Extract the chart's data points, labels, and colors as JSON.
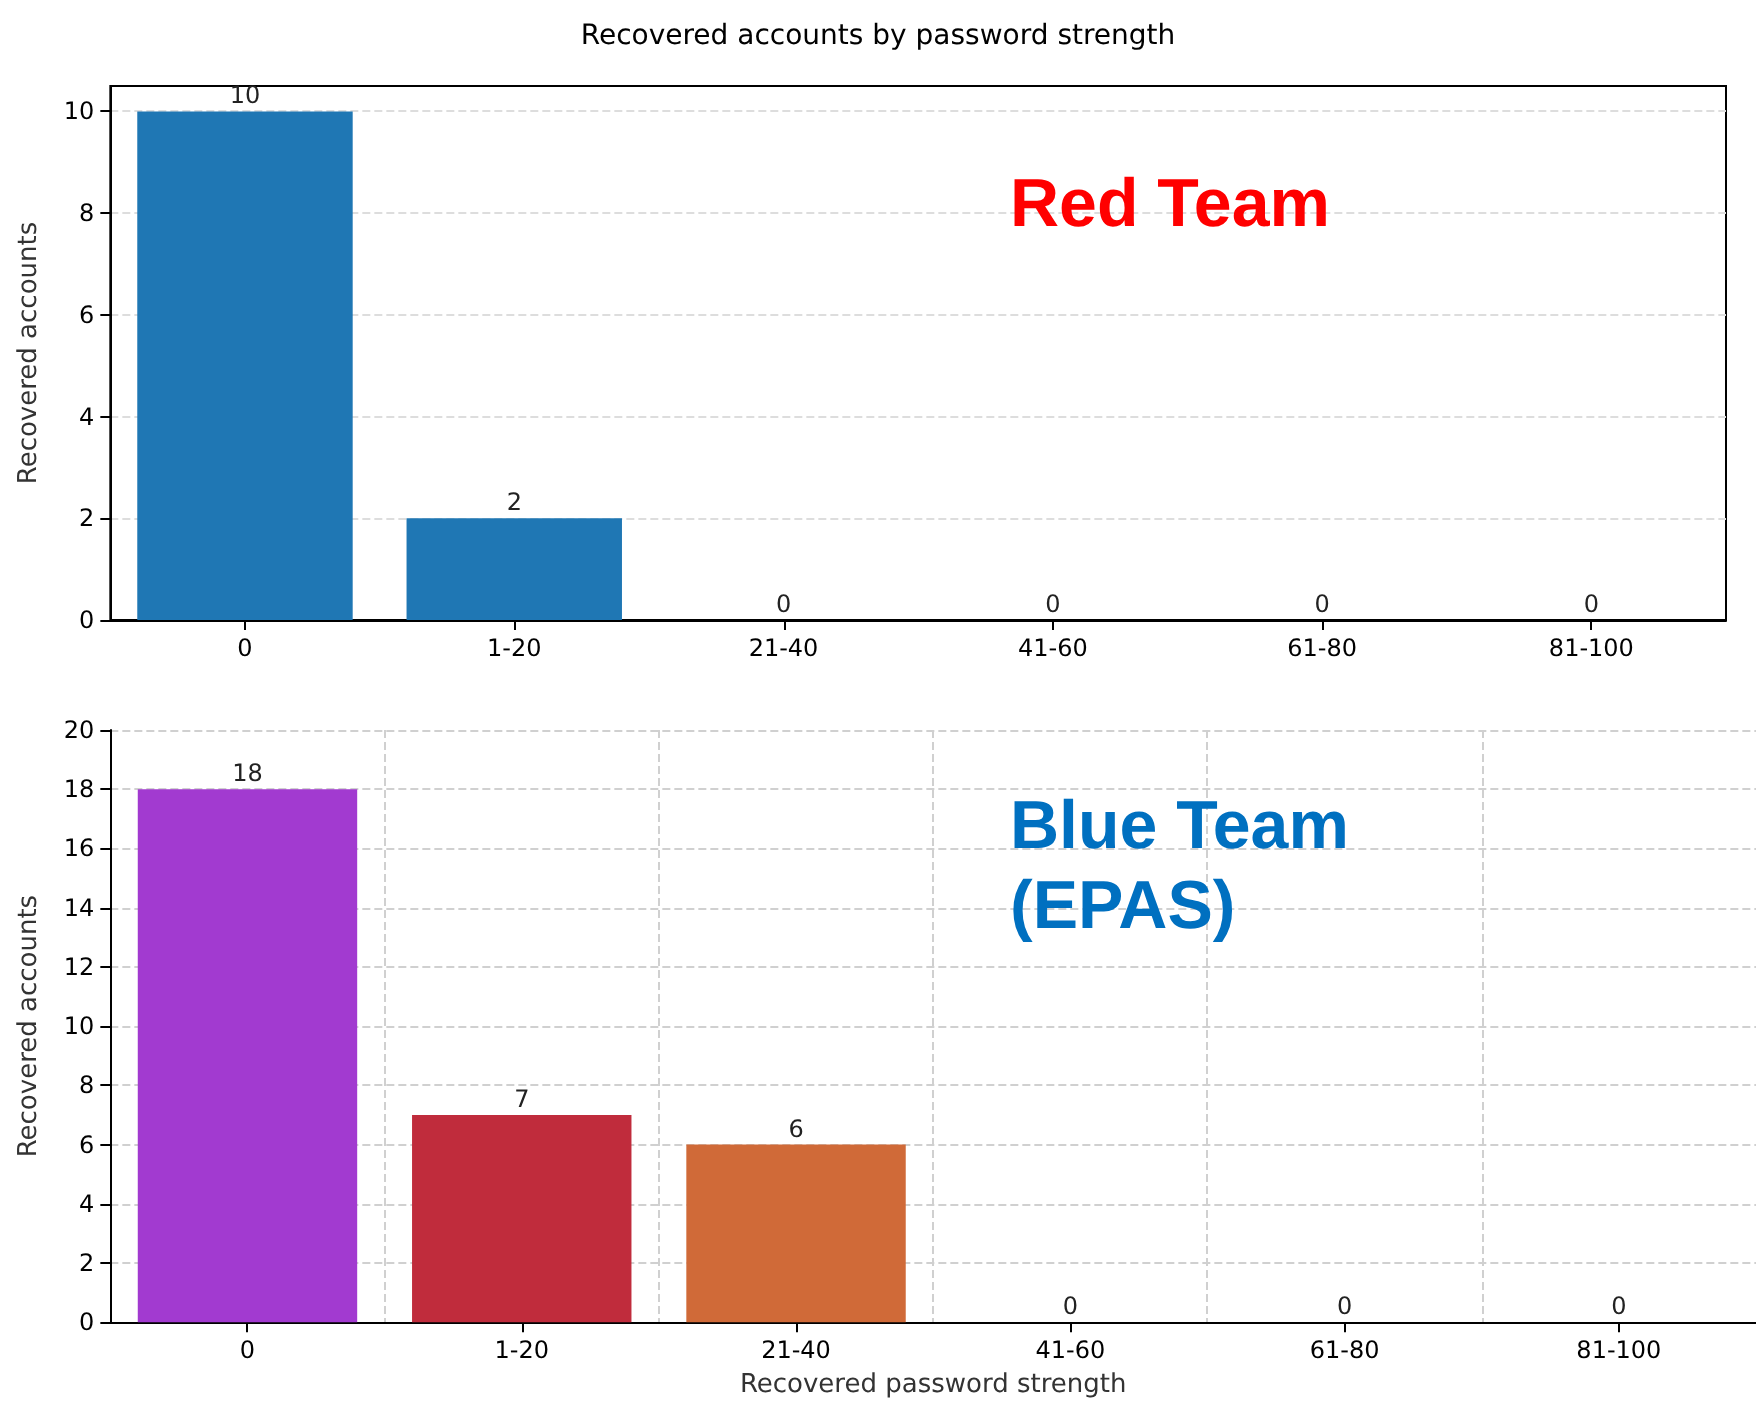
{
  "chart_data": [
    {
      "type": "bar",
      "title": "Recovered accounts by password strength",
      "ylabel": "Recovered accounts",
      "categories": [
        "0",
        "1-20",
        "21-40",
        "41-60",
        "61-80",
        "81-100"
      ],
      "values": [
        10,
        2,
        0,
        0,
        0,
        0
      ],
      "color": "#1f77b4",
      "ylim": [
        0,
        10.5
      ],
      "yticks": [
        0,
        2,
        4,
        6,
        8,
        10
      ],
      "grid": "y",
      "data_labels": true,
      "annotations": [
        "Red Team"
      ]
    },
    {
      "type": "bar",
      "xlabel": "Recovered password strength",
      "ylabel": "Recovered accounts",
      "categories": [
        "0",
        "1-20",
        "21-40",
        "41-60",
        "61-80",
        "81-100"
      ],
      "values": [
        18,
        7,
        6,
        0,
        0,
        0
      ],
      "colors": [
        "#a23ad0",
        "#c02c3c",
        "#d06a38",
        "#c8c040",
        "#c8c040",
        "#c8c040"
      ],
      "ylim": [
        0,
        20
      ],
      "yticks": [
        0,
        2,
        4,
        6,
        8,
        10,
        12,
        14,
        16,
        18,
        20
      ],
      "grid": true,
      "data_labels": true,
      "annotations": [
        "Blue Team\n(EPAS)"
      ]
    }
  ]
}
